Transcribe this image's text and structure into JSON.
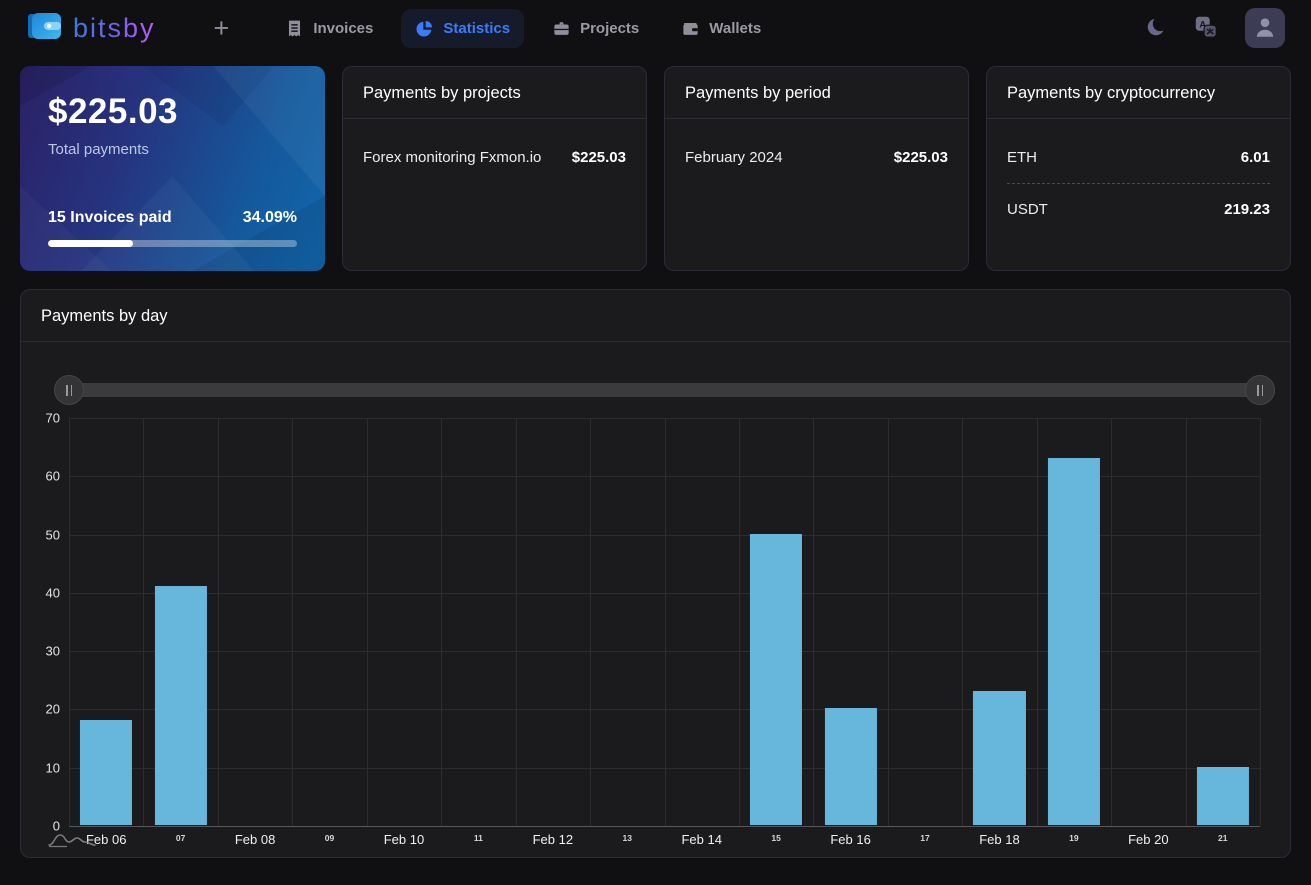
{
  "nav": {
    "brand": "bitsby",
    "add_label": "+",
    "items": [
      {
        "label": "Invoices",
        "icon": "receipt-icon",
        "active": false
      },
      {
        "label": "Statistics",
        "icon": "pie-chart-icon",
        "active": true
      },
      {
        "label": "Projects",
        "icon": "briefcase-icon",
        "active": false
      },
      {
        "label": "Wallets",
        "icon": "wallet-icon",
        "active": false
      }
    ]
  },
  "summary": {
    "total_amount": "$225.03",
    "total_label": "Total payments",
    "invoices_paid": "15 Invoices paid",
    "percent_label": "34.09%",
    "progress_percent": 34.09
  },
  "projects_card": {
    "title": "Payments by projects",
    "rows": [
      {
        "label": "Forex monitoring Fxmon.io",
        "value": "$225.03"
      }
    ]
  },
  "period_card": {
    "title": "Payments by period",
    "rows": [
      {
        "label": "February 2024",
        "value": "$225.03"
      }
    ]
  },
  "crypto_card": {
    "title": "Payments by cryptocurrency",
    "rows": [
      {
        "label": "ETH",
        "value": "6.01"
      },
      {
        "label": "USDT",
        "value": "219.23"
      }
    ]
  },
  "chart_card": {
    "title": "Payments by day"
  },
  "chart_data": {
    "type": "bar",
    "title": "Payments by day",
    "categories": [
      "Feb 06",
      "07",
      "Feb 08",
      "09",
      "Feb 10",
      "11",
      "Feb 12",
      "13",
      "Feb 14",
      "15",
      "Feb 16",
      "17",
      "Feb 18",
      "19",
      "Feb 20",
      "21"
    ],
    "values": [
      18,
      41,
      0,
      0,
      0,
      0,
      0,
      0,
      0,
      50,
      20,
      0,
      23,
      63,
      0,
      10
    ],
    "xlabel": "",
    "ylabel": "",
    "ylim": [
      0,
      70
    ],
    "yticks": [
      0,
      10,
      20,
      30,
      40,
      50,
      60,
      70
    ],
    "bar_color": "#67b7dc",
    "bar_width_fraction": 0.7,
    "grid": true,
    "legend": false
  },
  "colors": {
    "accent_blue": "#3b7cf6",
    "bar_blue": "#67b7dc",
    "card_bg": "#1b1b1e",
    "page_bg": "#101013",
    "gradient_from": "#2b2166",
    "gradient_to": "#1266ad"
  }
}
